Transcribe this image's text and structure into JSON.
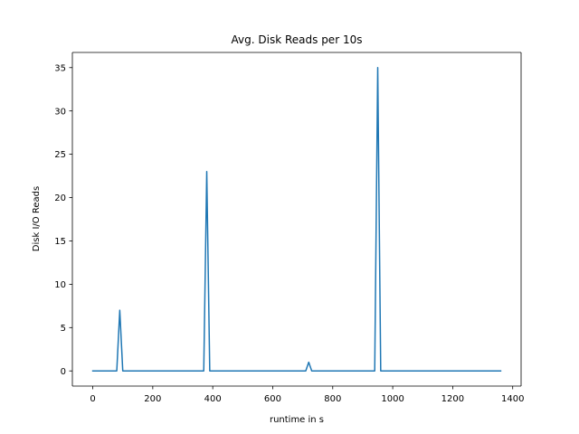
{
  "chart_data": {
    "type": "line",
    "title": "Avg. Disk Reads per 10s",
    "xlabel": "runtime in s",
    "ylabel": "Disk I/O Reads",
    "xlim": [
      -68,
      1428
    ],
    "ylim": [
      -1.75,
      36.75
    ],
    "xticks": [
      0,
      200,
      400,
      600,
      800,
      1000,
      1200,
      1400
    ],
    "yticks": [
      0,
      5,
      10,
      15,
      20,
      25,
      30,
      35
    ],
    "grid": false,
    "colors": {
      "line": "#1f77b4",
      "axes": "#000000",
      "background": "#ffffff"
    },
    "series": [
      {
        "x": [
          0,
          80,
          90,
          100,
          370,
          380,
          390,
          710,
          720,
          730,
          940,
          950,
          960,
          1360
        ],
        "y": [
          0,
          0,
          7,
          0,
          0,
          23,
          0,
          0,
          1,
          0,
          0,
          35,
          0,
          0
        ]
      }
    ]
  }
}
